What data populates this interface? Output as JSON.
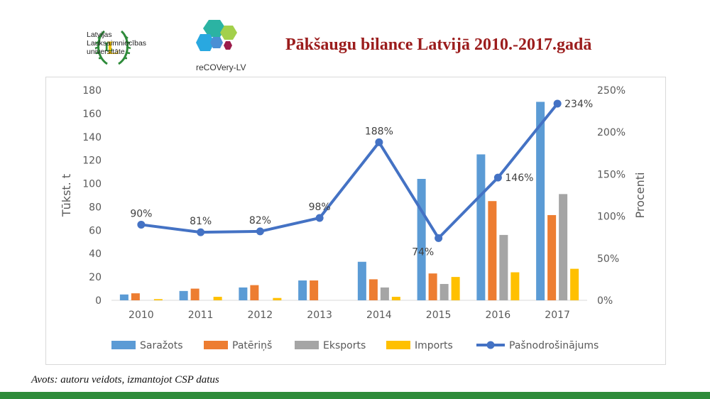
{
  "header": {
    "university_lines": [
      "Latvijas",
      "Lauksaimniecības",
      "universitāte"
    ],
    "project_name": "reCOVery-LV",
    "title": "Pākšaugu bilance Latvijā 2010.-2017.gadā"
  },
  "footer": {
    "source": "Avots: autoru veidots, izmantojot CSP datus"
  },
  "colors": {
    "title": "#9b1c1c",
    "footer_bar": "#2e8b3a"
  },
  "chart_data": {
    "type": "bar",
    "categories": [
      "2010",
      "2011",
      "2012",
      "2013",
      "2014",
      "2015",
      "2016",
      "2017"
    ],
    "series": [
      {
        "name": "Saražots",
        "type": "bar",
        "axis": "left",
        "color": "#5b9bd5",
        "values": [
          5,
          8,
          11,
          17,
          33,
          104,
          125,
          170
        ]
      },
      {
        "name": "Patēriņš",
        "type": "bar",
        "axis": "left",
        "color": "#ed7d31",
        "values": [
          6,
          10,
          13,
          17,
          18,
          23,
          85,
          73
        ]
      },
      {
        "name": "Eksports",
        "type": "bar",
        "axis": "left",
        "color": "#a5a5a5",
        "values": [
          0,
          0,
          0,
          0,
          11,
          14,
          56,
          91
        ]
      },
      {
        "name": "Imports",
        "type": "bar",
        "axis": "left",
        "color": "#ffc000",
        "values": [
          1,
          3,
          2,
          0,
          3,
          20,
          24,
          27
        ]
      },
      {
        "name": "Pašnodrošinājums",
        "type": "line",
        "axis": "right",
        "color": "#4472c4",
        "values": [
          90,
          81,
          82,
          98,
          188,
          74,
          146,
          234
        ]
      }
    ],
    "line_labels": [
      "90%",
      "81%",
      "82%",
      "98%",
      "188%",
      "74%",
      "146%",
      "234%"
    ],
    "ylabel": "Tūkst. t",
    "y2label": "Procenti",
    "ylim": [
      0,
      180
    ],
    "yticks": [
      "0",
      "20",
      "40",
      "60",
      "80",
      "100",
      "120",
      "140",
      "160",
      "180"
    ],
    "y2lim": [
      0,
      250
    ],
    "y2ticks": [
      "0%",
      "50%",
      "100%",
      "150%",
      "200%",
      "250%"
    ],
    "grid": false,
    "legend_position": "bottom"
  }
}
